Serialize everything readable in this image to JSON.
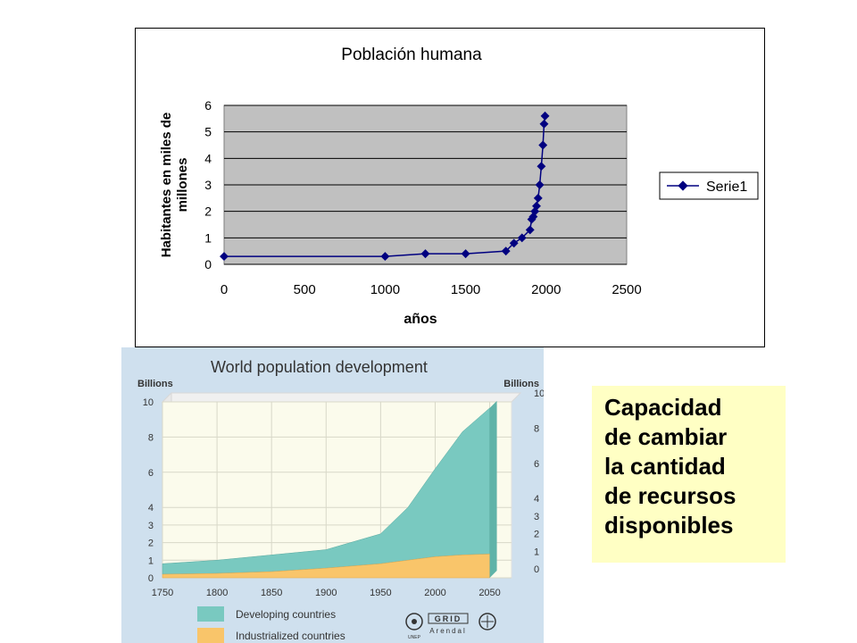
{
  "chart_data": [
    {
      "type": "line",
      "title": "Población humana",
      "xlabel": "años",
      "ylabel_lines": [
        "Habitantes en miles de",
        "millones"
      ],
      "xlim": [
        0,
        2500
      ],
      "ylim": [
        0,
        6
      ],
      "x_ticks": [
        "0",
        "500",
        "1000",
        "1500",
        "2000",
        "2500"
      ],
      "y_ticks": [
        "0",
        "1",
        "2",
        "3",
        "4",
        "5",
        "6"
      ],
      "grid": "horizontal",
      "legend_position": "right",
      "series": [
        {
          "name": "Serie1",
          "color": "#000080",
          "points": [
            [
              0,
              0.3
            ],
            [
              1000,
              0.3
            ],
            [
              1250,
              0.4
            ],
            [
              1500,
              0.4
            ],
            [
              1750,
              0.5
            ],
            [
              1800,
              0.8
            ],
            [
              1850,
              1.0
            ],
            [
              1900,
              1.3
            ],
            [
              1910,
              1.7
            ],
            [
              1920,
              1.8
            ],
            [
              1930,
              2.0
            ],
            [
              1940,
              2.2
            ],
            [
              1950,
              2.5
            ],
            [
              1960,
              3.0
            ],
            [
              1970,
              3.7
            ],
            [
              1980,
              4.5
            ],
            [
              1987,
              5.3
            ],
            [
              1993,
              5.6
            ]
          ]
        }
      ]
    },
    {
      "type": "area",
      "title": "World population development",
      "ylabel_left": "Billions",
      "ylabel_right": "Billions",
      "xlim": [
        1750,
        2070
      ],
      "ylim": [
        0,
        10
      ],
      "x_ticks": [
        "1750",
        "1800",
        "1850",
        "1900",
        "1950",
        "2000",
        "2050"
      ],
      "y_ticks_left": [
        "0",
        "1",
        "2",
        "3",
        "4",
        "6",
        "8",
        "10"
      ],
      "y_ticks_right": [
        "0",
        "1",
        "2",
        "3",
        "4",
        "6",
        "8",
        "10"
      ],
      "x": [
        1750,
        1800,
        1850,
        1900,
        1950,
        1975,
        2000,
        2025,
        2050
      ],
      "series": [
        {
          "name": "Industrialized countries",
          "color": "#f9c56a",
          "values": [
            0.2,
            0.25,
            0.35,
            0.55,
            0.8,
            1.0,
            1.2,
            1.3,
            1.35
          ]
        },
        {
          "name": "Developing countries",
          "color": "#79c9c0",
          "values": [
            0.6,
            0.75,
            0.95,
            1.05,
            1.7,
            3.0,
            5.0,
            7.0,
            8.3
          ]
        }
      ],
      "logos": [
        "UNEP",
        "GRID Arendal"
      ]
    }
  ],
  "textbox": {
    "lines": [
      "Capacidad",
      "de cambiar",
      "la cantidad",
      "de recursos",
      "disponibles"
    ],
    "background": "#ffffc4"
  }
}
